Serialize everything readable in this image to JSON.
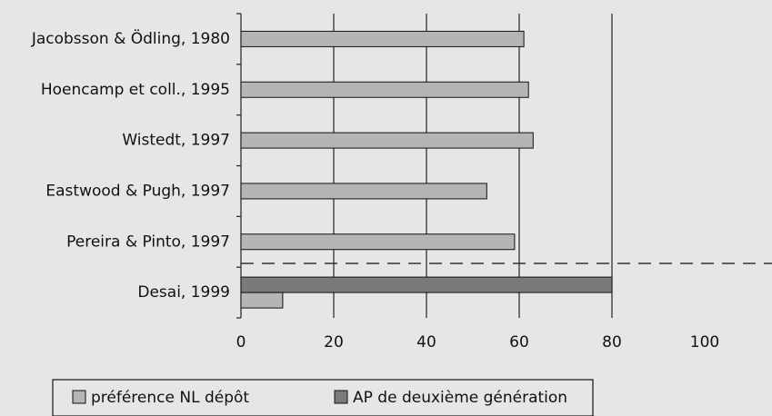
{
  "chart_data": {
    "type": "bar",
    "orientation": "horizontal",
    "categories": [
      "Jacobsson & Ödling, 1980",
      "Hoencamp et coll., 1995",
      "Wistedt, 1997",
      "Eastwood & Pugh, 1997",
      "Pereira & Pinto, 1997",
      "Desai, 1999"
    ],
    "series": [
      {
        "name": "préférence NL dépôt",
        "color": "#b5b5b5",
        "values": [
          61,
          62,
          63,
          53,
          59,
          9
        ]
      },
      {
        "name": "AP de deuxième génération",
        "color": "#7a7a7a",
        "values": [
          null,
          null,
          null,
          null,
          null,
          80
        ]
      }
    ],
    "xlim": [
      0,
      100
    ],
    "xticks": [
      0,
      20,
      40,
      60,
      80,
      100
    ],
    "grid": true
  }
}
